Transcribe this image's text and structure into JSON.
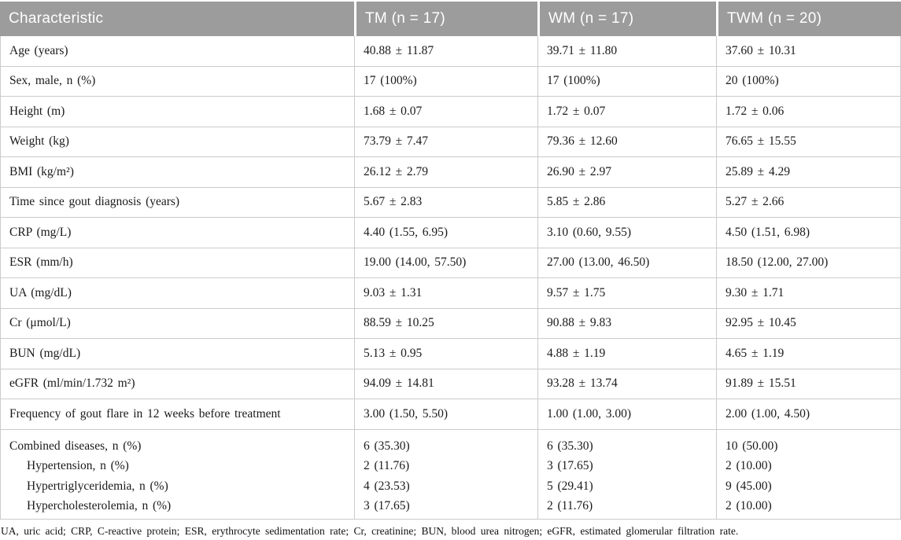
{
  "colors": {
    "header_bg": "#9c9c9c",
    "header_text": "#ffffff",
    "cell_border": "#cbcbcb",
    "body_text": "#1a1a1a"
  },
  "table": {
    "header": [
      "Characteristic",
      "TM (n = 17)",
      "WM (n = 17)",
      "TWM (n = 20)"
    ],
    "rows": [
      {
        "label": "Age (years)",
        "values": [
          "40.88 ± 11.87",
          "39.71 ± 11.80",
          "37.60 ± 10.31"
        ]
      },
      {
        "label": "Sex, male, n (%)",
        "values": [
          "17 (100%)",
          "17 (100%)",
          "20 (100%)"
        ]
      },
      {
        "label": "Height (m)",
        "values": [
          "1.68 ± 0.07",
          "1.72 ± 0.07",
          "1.72 ± 0.06"
        ]
      },
      {
        "label": "Weight (kg)",
        "values": [
          "73.79 ± 7.47",
          "79.36 ± 12.60",
          "76.65 ± 15.55"
        ]
      },
      {
        "label": "BMI (kg/m²)",
        "values": [
          "26.12 ± 2.79",
          "26.90 ± 2.97",
          "25.89 ± 4.29"
        ]
      },
      {
        "label": "Time since gout diagnosis (years)",
        "values": [
          "5.67 ± 2.83",
          "5.85 ± 2.86",
          "5.27 ± 2.66"
        ]
      },
      {
        "label": "CRP (mg/L)",
        "values": [
          "4.40 (1.55, 6.95)",
          "3.10 (0.60, 9.55)",
          "4.50 (1.51, 6.98)"
        ]
      },
      {
        "label": "ESR (mm/h)",
        "values": [
          "19.00 (14.00, 57.50)",
          "27.00 (13.00, 46.50)",
          "18.50 (12.00, 27.00)"
        ]
      },
      {
        "label": "UA (mg/dL)",
        "values": [
          "9.03 ± 1.31",
          "9.57 ± 1.75",
          "9.30 ± 1.71"
        ]
      },
      {
        "label": "Cr (μmol/L)",
        "values": [
          "88.59 ± 10.25",
          "90.88 ± 9.83",
          "92.95 ± 10.45"
        ]
      },
      {
        "label": "BUN (mg/dL)",
        "values": [
          "5.13 ± 0.95",
          "4.88 ± 1.19",
          "4.65 ± 1.19"
        ]
      },
      {
        "label": "eGFR (ml/min/1.732 m²)",
        "values": [
          "94.09 ± 14.81",
          "93.28 ± 13.74",
          "91.89 ± 15.51"
        ]
      },
      {
        "label": "Frequency of gout flare in 12 weeks before treatment",
        "values": [
          "3.00 (1.50, 5.50)",
          "1.00 (1.00, 3.00)",
          "2.00 (1.00, 4.50)"
        ]
      }
    ],
    "combined": [
      {
        "label": "Combined diseases, n (%)",
        "indent": false,
        "values": [
          "6 (35.30)",
          "6 (35.30)",
          "10 (50.00)"
        ]
      },
      {
        "label": "Hypertension, n (%)",
        "indent": true,
        "values": [
          "2 (11.76)",
          "3 (17.65)",
          "2 (10.00)"
        ]
      },
      {
        "label": "Hypertriglyceridemia, n (%)",
        "indent": true,
        "values": [
          "4 (23.53)",
          "5 (29.41)",
          "9 (45.00)"
        ]
      },
      {
        "label": "Hypercholesterolemia, n (%)",
        "indent": true,
        "values": [
          "3 (17.65)",
          "2 (11.76)",
          "2 (10.00)"
        ]
      }
    ],
    "footnote": "UA, uric acid; CRP, C-reactive protein; ESR, erythrocyte sedimentation rate; Cr, creatinine; BUN, blood urea nitrogen; eGFR, estimated glomerular filtration rate."
  }
}
